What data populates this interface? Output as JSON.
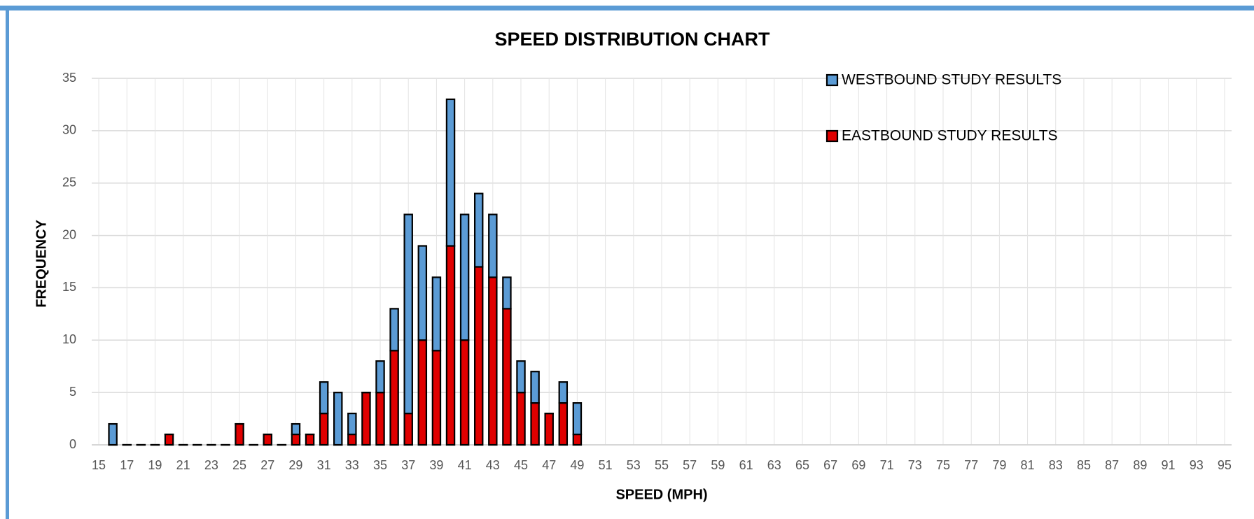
{
  "chart_data": {
    "type": "bar",
    "stacked": true,
    "title": "SPEED DISTRIBUTION CHART",
    "x_label": "SPEED (MPH)",
    "y_label": "FREQUENCY",
    "x": [
      16,
      17,
      18,
      19,
      20,
      21,
      22,
      23,
      24,
      25,
      26,
      27,
      28,
      29,
      30,
      31,
      32,
      33,
      34,
      35,
      36,
      37,
      38,
      39,
      40,
      41,
      42,
      43,
      44,
      45,
      46,
      47,
      48,
      49
    ],
    "series": [
      {
        "name": "WESTBOUND STUDY RESULTS",
        "color": "#5b9bd5",
        "values": [
          2,
          0,
          0,
          0,
          0,
          0,
          0,
          0,
          0,
          0,
          0,
          0,
          0,
          1,
          0,
          3,
          5,
          2,
          0,
          3,
          4,
          19,
          9,
          7,
          14,
          12,
          7,
          6,
          3,
          3,
          3,
          0,
          2,
          3
        ]
      },
      {
        "name": "EASTBOUND STUDY RESULTS",
        "color": "#e00000",
        "values": [
          0,
          0,
          0,
          0,
          1,
          0,
          0,
          0,
          0,
          2,
          0,
          1,
          0,
          1,
          1,
          3,
          0,
          1,
          5,
          5,
          9,
          3,
          10,
          9,
          19,
          10,
          17,
          16,
          13,
          5,
          4,
          3,
          4,
          1
        ]
      }
    ],
    "xlim": [
      14.5,
      95.5
    ],
    "xticks": [
      15,
      17,
      19,
      21,
      23,
      25,
      27,
      29,
      31,
      33,
      35,
      37,
      39,
      41,
      43,
      45,
      47,
      49,
      51,
      53,
      55,
      57,
      59,
      61,
      63,
      65,
      67,
      69,
      71,
      73,
      75,
      77,
      79,
      81,
      83,
      85,
      87,
      89,
      91,
      93,
      95
    ],
    "ylim": [
      0,
      35
    ],
    "yticks": [
      0,
      5,
      10,
      15,
      20,
      25,
      30,
      35
    ],
    "grid": true,
    "legend": "upper right"
  }
}
